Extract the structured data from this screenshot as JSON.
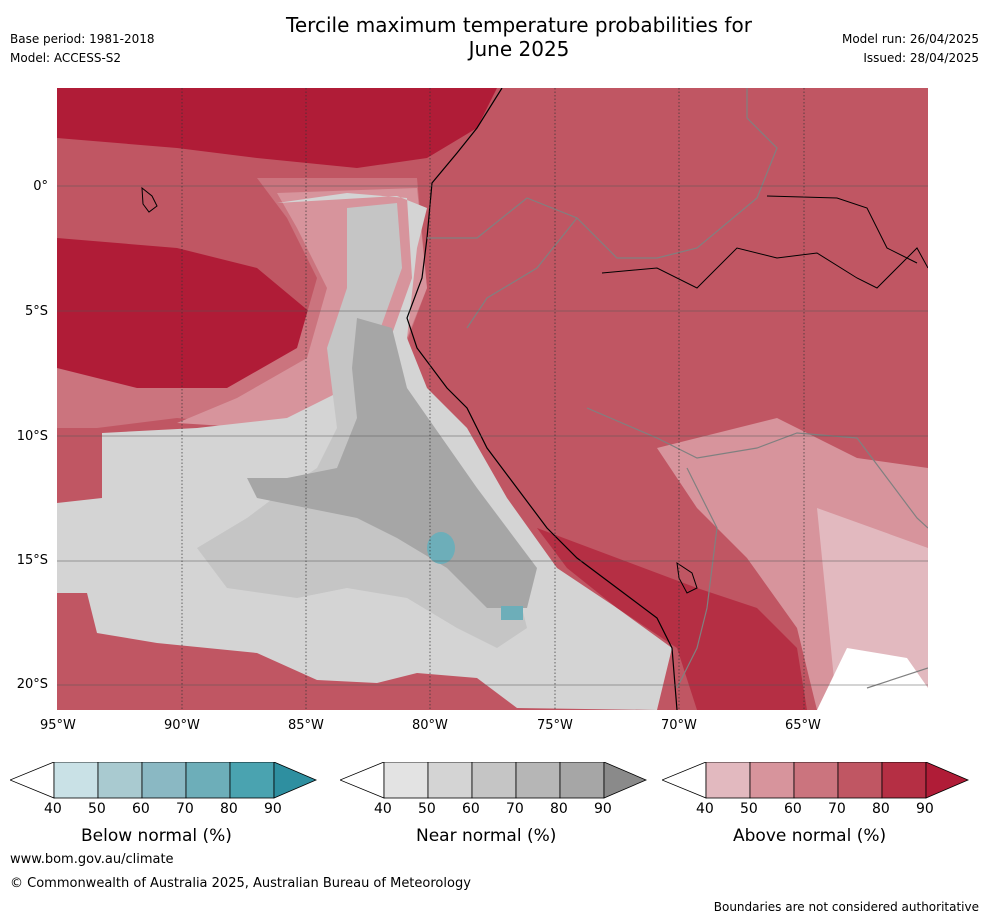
{
  "header": {
    "title_line1": "Tercile maximum temperature probabilities for",
    "title_line2": "June 2025",
    "base_period": "Base period: 1981-2018",
    "model": "Model: ACCESS-S2",
    "model_run": "Model run: 26/04/2025",
    "issued": "Issued: 28/04/2025"
  },
  "map": {
    "lat_labels": [
      "0°",
      "5°S",
      "10°S",
      "15°S",
      "20°S"
    ],
    "lon_labels": [
      "95°W",
      "90°W",
      "85°W",
      "80°W",
      "75°W",
      "70°W",
      "65°W"
    ]
  },
  "colorbars": [
    {
      "title": "Below normal (%)",
      "ticks": [
        "40",
        "50",
        "60",
        "70",
        "80",
        "90"
      ],
      "colors": [
        "#ffffff",
        "#c9e1e6",
        "#a9cad0",
        "#8ab8c3",
        "#6daeb9",
        "#4aa3b0",
        "#2e8fa0"
      ]
    },
    {
      "title": "Near normal (%)",
      "ticks": [
        "40",
        "50",
        "60",
        "70",
        "80",
        "90"
      ],
      "colors": [
        "#ffffff",
        "#e3e3e3",
        "#d4d4d4",
        "#c5c5c5",
        "#b6b6b6",
        "#a6a6a6",
        "#8a8a8a"
      ]
    },
    {
      "title": "Above normal (%)",
      "ticks": [
        "40",
        "50",
        "60",
        "70",
        "80",
        "90"
      ],
      "colors": [
        "#ffffff",
        "#e2b9bf",
        "#d7949c",
        "#cb747e",
        "#c05663",
        "#b52f44",
        "#b01c37"
      ]
    }
  ],
  "footer": {
    "website": "www.bom.gov.au/climate",
    "copyright": "© Commonwealth of Australia 2025, Australian Bureau of Meteorology",
    "disclaimer": "Boundaries are not considered authoritative"
  }
}
